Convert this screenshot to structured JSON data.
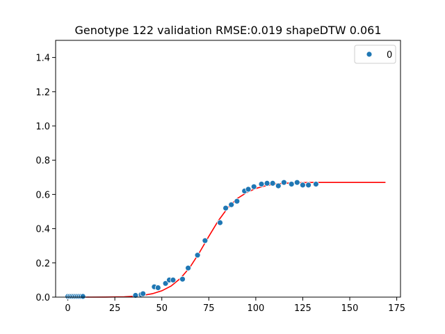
{
  "chart_data": {
    "type": "scatter",
    "title": "Genotype 122 validation RMSE:0.019 shapeDTW 0.061",
    "xlabel": "",
    "ylabel": "",
    "xlim": [
      -6.5,
      177
    ],
    "ylim": [
      0,
      1.5
    ],
    "xticks": [
      0,
      25,
      50,
      75,
      100,
      125,
      150,
      175
    ],
    "yticks": [
      0.0,
      0.2,
      0.4,
      0.6,
      0.8,
      1.0,
      1.2,
      1.4
    ],
    "xtick_labels": [
      "0",
      "25",
      "50",
      "75",
      "100",
      "125",
      "150",
      "175"
    ],
    "ytick_labels": [
      "0.0",
      "0.2",
      "0.4",
      "0.6",
      "0.8",
      "1.0",
      "1.2",
      "1.4"
    ],
    "grid": false,
    "legend": {
      "position": "top-right",
      "entries": [
        {
          "label": "0",
          "color": "#1f77b4",
          "marker": "circle"
        }
      ]
    },
    "series": [
      {
        "name": "0",
        "kind": "scatter",
        "color": "#1f77b4",
        "x": [
          0,
          1,
          2,
          3,
          4,
          5,
          6,
          7,
          8,
          36,
          39,
          40,
          46,
          48,
          52,
          54,
          56,
          61,
          64,
          69,
          73,
          81,
          84,
          87,
          90,
          94,
          96,
          99,
          103,
          106,
          109,
          112,
          115,
          119,
          122,
          125,
          128,
          132
        ],
        "y": [
          0.004,
          0.004,
          0.004,
          0.004,
          0.004,
          0.004,
          0.004,
          0.004,
          0.004,
          0.01,
          0.015,
          0.02,
          0.06,
          0.055,
          0.08,
          0.1,
          0.1,
          0.105,
          0.17,
          0.245,
          0.33,
          0.435,
          0.52,
          0.54,
          0.56,
          0.62,
          0.63,
          0.645,
          0.66,
          0.665,
          0.665,
          0.65,
          0.67,
          0.66,
          0.67,
          0.655,
          0.655,
          0.66
        ]
      },
      {
        "name": "",
        "kind": "line",
        "color": "#ff0000",
        "x": [
          0,
          10,
          20,
          30,
          35,
          40,
          45,
          50,
          55,
          60,
          65,
          70,
          75,
          80,
          85,
          90,
          95,
          100,
          105,
          110,
          115,
          120,
          130,
          140,
          150,
          160,
          169
        ],
        "y": [
          0.0,
          0.0,
          0.0005,
          0.002,
          0.005,
          0.01,
          0.02,
          0.037,
          0.065,
          0.11,
          0.175,
          0.26,
          0.355,
          0.445,
          0.52,
          0.575,
          0.61,
          0.635,
          0.65,
          0.66,
          0.665,
          0.668,
          0.67,
          0.67,
          0.67,
          0.67,
          0.67
        ]
      }
    ]
  }
}
